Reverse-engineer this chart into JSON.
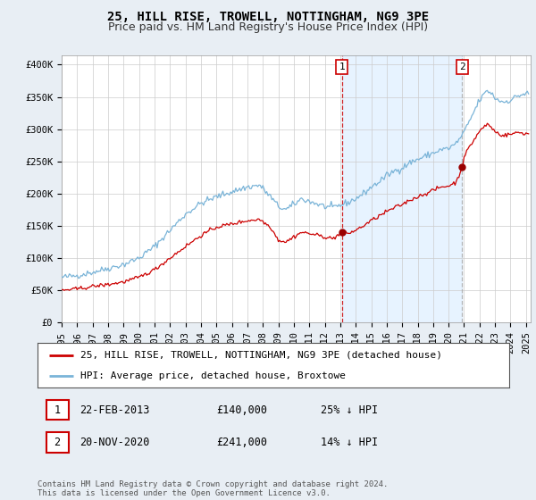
{
  "title": "25, HILL RISE, TROWELL, NOTTINGHAM, NG9 3PE",
  "subtitle": "Price paid vs. HM Land Registry's House Price Index (HPI)",
  "ylabel_ticks": [
    "£0",
    "£50K",
    "£100K",
    "£150K",
    "£200K",
    "£250K",
    "£300K",
    "£350K",
    "£400K"
  ],
  "ytick_values": [
    0,
    50000,
    100000,
    150000,
    200000,
    250000,
    300000,
    350000,
    400000
  ],
  "ylim": [
    0,
    415000
  ],
  "xlim_start": 1995.0,
  "xlim_end": 2025.3,
  "xtick_years": [
    1995,
    1996,
    1997,
    1998,
    1999,
    2000,
    2001,
    2002,
    2003,
    2004,
    2005,
    2006,
    2007,
    2008,
    2009,
    2010,
    2011,
    2012,
    2013,
    2014,
    2015,
    2016,
    2017,
    2018,
    2019,
    2020,
    2021,
    2022,
    2023,
    2024,
    2025
  ],
  "hpi_color": "#7ab4d8",
  "sale_color": "#cc0000",
  "vline1_color": "#cc0000",
  "vline2_color": "#aaaaaa",
  "shade_color": "#ddeeff",
  "marker_color": "#990000",
  "background_color": "#e8eef4",
  "plot_bg_color": "#ffffff",
  "legend_label_sale": "25, HILL RISE, TROWELL, NOTTINGHAM, NG9 3PE (detached house)",
  "legend_label_hpi": "HPI: Average price, detached house, Broxtowe",
  "sale1_date": 2013.12,
  "sale1_price": 140000,
  "sale2_date": 2020.88,
  "sale2_price": 241000,
  "title_fontsize": 10,
  "subtitle_fontsize": 9,
  "tick_fontsize": 7.5,
  "legend_fontsize": 8,
  "annotation_fontsize": 8,
  "footer_fontsize": 6.5,
  "footer": "Contains HM Land Registry data © Crown copyright and database right 2024.\nThis data is licensed under the Open Government Licence v3.0."
}
